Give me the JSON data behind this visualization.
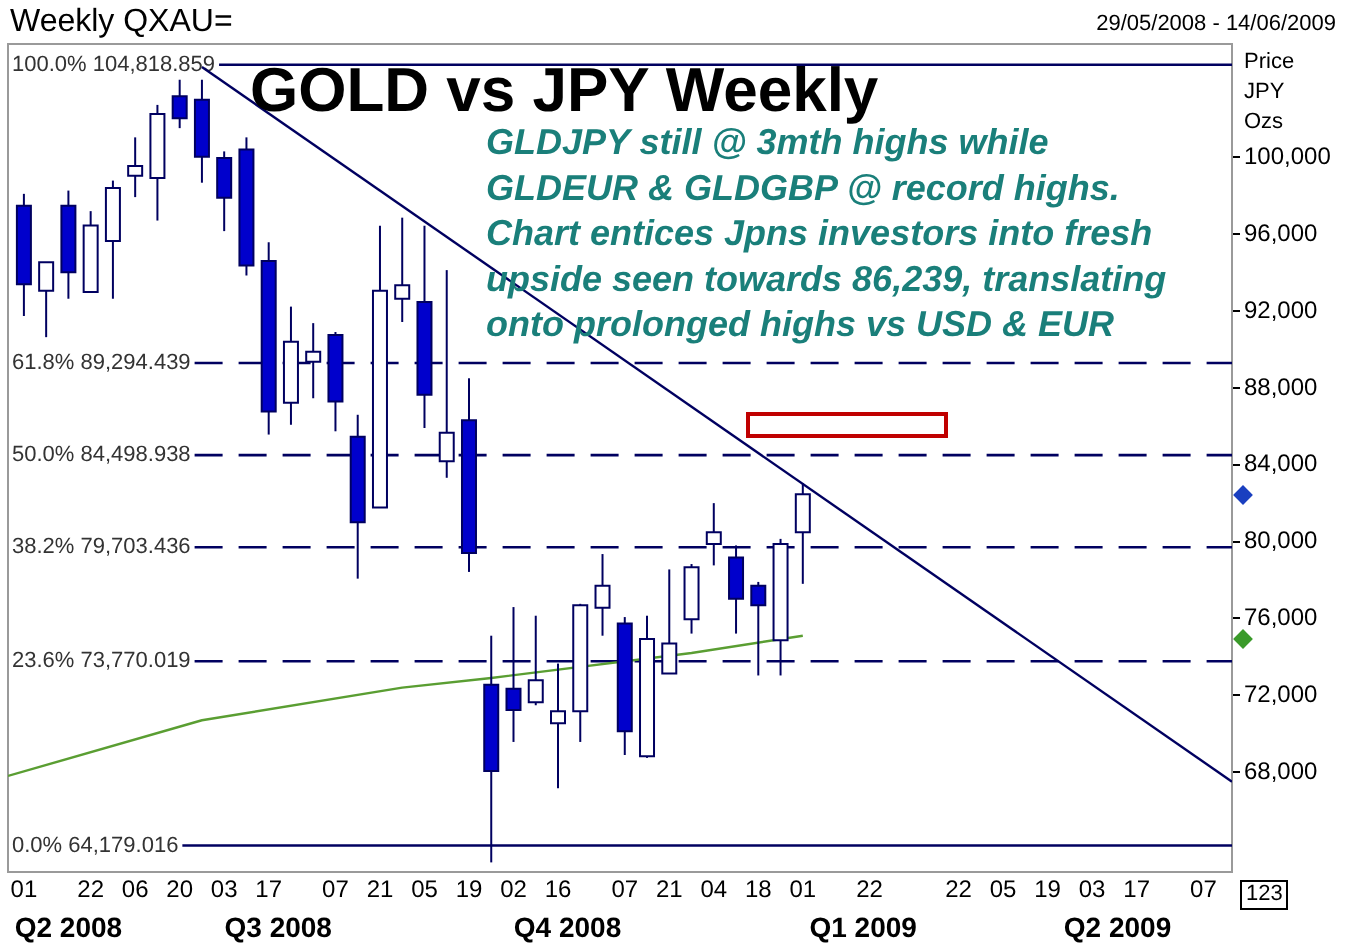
{
  "chart_data": {
    "type": "candlestick",
    "title": "GOLD vs JPY Weekly",
    "subtitle": "GLDJPY still @ 3mth highs while\nGLDEUR & GLDGBP @ record highs.\nChart entices Jpns investors into fresh\nupside seen towards 86,239, translating\nonto prolonged highs vs USD & EUR",
    "ylabel": "Price JPY Ozs",
    "annotations": [
      "Weekly QXAU=",
      "29/05/2008 - 14/06/2009",
      "123"
    ],
    "x": [
      "2008-06-01",
      "2008-06-08",
      "2008-06-15",
      "2008-06-22",
      "2008-06-29",
      "2008-07-06",
      "2008-07-13",
      "2008-07-20",
      "2008-07-27",
      "2008-08-03",
      "2008-08-10",
      "2008-08-17",
      "2008-08-24",
      "2008-08-31",
      "2008-09-07",
      "2008-09-14",
      "2008-09-21",
      "2008-09-28",
      "2008-10-05",
      "2008-10-12",
      "2008-10-19",
      "2008-10-26",
      "2008-11-02",
      "2008-11-09",
      "2008-11-16",
      "2008-11-23",
      "2008-11-30",
      "2008-12-07",
      "2008-12-14",
      "2008-12-21",
      "2008-12-28",
      "2009-01-04",
      "2009-01-11",
      "2009-01-18",
      "2009-01-25",
      "2009-02-01"
    ],
    "ohlc": [
      [
        97480,
        98100,
        91740,
        93400
      ],
      [
        93060,
        94540,
        90640,
        94540
      ],
      [
        97480,
        98270,
        92640,
        94020
      ],
      [
        92990,
        97200,
        92990,
        96450
      ],
      [
        95650,
        98790,
        92640,
        98410
      ],
      [
        99040,
        101040,
        97930,
        99550
      ],
      [
        98930,
        102730,
        96710,
        102250
      ],
      [
        103180,
        104040,
        101520,
        102040
      ],
      [
        103000,
        104040,
        98680,
        100030
      ],
      [
        99970,
        100310,
        96160,
        97900
      ],
      [
        100410,
        101040,
        93850,
        94370
      ],
      [
        94610,
        95580,
        85570,
        86770
      ],
      [
        87230,
        92230,
        86080,
        90400
      ],
      [
        89360,
        91370,
        87460,
        89880
      ],
      [
        90750,
        90910,
        85740,
        87290
      ],
      [
        85460,
        86600,
        78070,
        81010
      ],
      [
        81770,
        96440,
        81770,
        93060
      ],
      [
        92640,
        96860,
        91430,
        93340
      ],
      [
        92470,
        96440,
        85910,
        87640
      ],
      [
        84180,
        94130,
        83320,
        85670
      ],
      [
        86320,
        88500,
        78420,
        79410
      ],
      [
        72550,
        75100,
        63300,
        68060
      ],
      [
        72340,
        76590,
        69570,
        71230
      ],
      [
        71640,
        76140,
        71480,
        72780
      ],
      [
        70540,
        73650,
        67160,
        71170
      ],
      [
        71170,
        76760,
        69570,
        76690
      ],
      [
        76550,
        79350,
        75100,
        77700
      ],
      [
        75730,
        76070,
        68890,
        70130
      ],
      [
        68820,
        76140,
        68740,
        74930
      ],
      [
        73130,
        78550,
        73130,
        74690
      ],
      [
        75960,
        78830,
        75210,
        78660
      ],
      [
        79870,
        82000,
        78760,
        80490
      ],
      [
        79170,
        79800,
        75210,
        77030
      ],
      [
        77700,
        77900,
        73030,
        76690
      ],
      [
        74860,
        80140,
        73030,
        79870
      ],
      [
        80490,
        83040,
        77800,
        82460
      ]
    ],
    "series": [
      {
        "type": "line",
        "color": "#5a9e32",
        "x": [
          "2008-05-27",
          "2008-07-27",
          "2008-09-28",
          "2008-10-26",
          "2008-12-28",
          "2009-02-01"
        ],
        "values": [
          67800,
          70700,
          72400,
          72900,
          74200,
          75100
        ]
      },
      {
        "type": "line",
        "color": "#000060",
        "x": [
          "2008-07-27",
          "2009-06-16"
        ],
        "values": [
          104700,
          67500
        ]
      }
    ],
    "xlim": [
      "2008-05-27",
      "2009-06-16"
    ],
    "xticks": [
      {
        "value": "2008-06-01",
        "label": "01"
      },
      {
        "value": "2008-06-22",
        "label": "22"
      },
      {
        "value": "2008-07-06",
        "label": "06"
      },
      {
        "value": "2008-07-20",
        "label": "20"
      },
      {
        "value": "2008-08-03",
        "label": "03"
      },
      {
        "value": "2008-08-17",
        "label": "17"
      },
      {
        "value": "2008-09-07",
        "label": "07"
      },
      {
        "value": "2008-09-21",
        "label": "21"
      },
      {
        "value": "2008-10-05",
        "label": "05"
      },
      {
        "value": "2008-10-19",
        "label": "19"
      },
      {
        "value": "2008-11-02",
        "label": "02"
      },
      {
        "value": "2008-11-16",
        "label": "16"
      },
      {
        "value": "2008-12-07",
        "label": "07"
      },
      {
        "value": "2008-12-21",
        "label": "21"
      },
      {
        "value": "2009-01-04",
        "label": "04"
      },
      {
        "value": "2009-01-18",
        "label": "18"
      },
      {
        "value": "2009-02-01",
        "label": "01"
      },
      {
        "value": "2009-02-22",
        "label": "22"
      },
      {
        "value": "2009-03-22",
        "label": "22"
      },
      {
        "value": "2009-04-05",
        "label": "05"
      },
      {
        "value": "2009-04-19",
        "label": "19"
      },
      {
        "value": "2009-05-03",
        "label": "03"
      },
      {
        "value": "2009-05-17",
        "label": "17"
      },
      {
        "value": "2009-06-07",
        "label": "07"
      }
    ],
    "x2lim": [
      "2008-05-27",
      "2009-06-16"
    ],
    "x2ticks": [
      {
        "value": "2008-06-15",
        "label": "Q2 2008"
      },
      {
        "value": "2008-08-20",
        "label": "Q3 2008"
      },
      {
        "value": "2008-11-19",
        "label": "Q4 2008"
      },
      {
        "value": "2009-02-20",
        "label": "Q1 2009"
      },
      {
        "value": "2009-05-11",
        "label": "Q2 2009"
      }
    ],
    "ylim": [
      62800,
      105900
    ],
    "yticks": [
      {
        "value": 68000,
        "label": "68,000"
      },
      {
        "value": 72000,
        "label": "72,000"
      },
      {
        "value": 76000,
        "label": "76,000"
      },
      {
        "value": 80000,
        "label": "80,000"
      },
      {
        "value": 84000,
        "label": "84,000"
      },
      {
        "value": 88000,
        "label": "88,000"
      },
      {
        "value": 92000,
        "label": "92,000"
      },
      {
        "value": 96000,
        "label": "96,000"
      },
      {
        "value": 100000,
        "label": "100,000"
      }
    ],
    "ref_lines": [
      {
        "axis": "y",
        "value": 104818.859,
        "label": "100.0% 104,818.859",
        "color": "#000060",
        "line_style": "solid"
      },
      {
        "axis": "y",
        "value": 89294.439,
        "label": "61.8% 89,294.439",
        "color": "#000060",
        "line_style": "dashed"
      },
      {
        "axis": "y",
        "value": 84498.938,
        "label": "50.0% 84,498.938",
        "color": "#000060",
        "line_style": "dashed"
      },
      {
        "axis": "y",
        "value": 79703.436,
        "label": "38.2% 79,703.436",
        "color": "#000060",
        "line_style": "dashed"
      },
      {
        "axis": "y",
        "value": 73770.019,
        "label": "23.6% 73,770.019",
        "color": "#000060",
        "line_style": "dashed"
      },
      {
        "axis": "y",
        "value": 64179.016,
        "label": "0.0% 64,179.016",
        "color": "#000060",
        "line_style": "solid"
      }
    ],
    "legend": false
  }
}
